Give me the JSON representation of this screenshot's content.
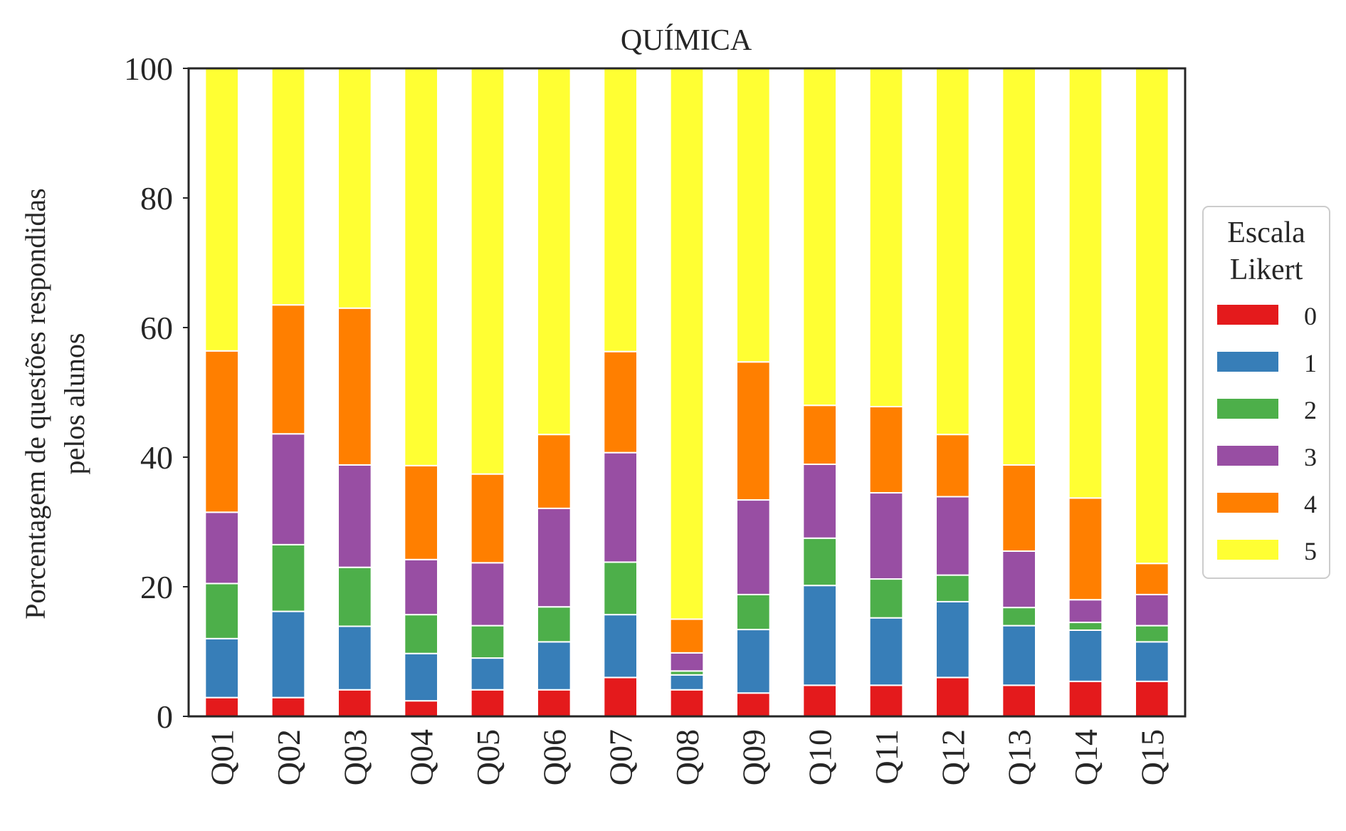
{
  "chart_data": {
    "type": "bar",
    "stacked": true,
    "title": "QUÍMICA",
    "xlabel": "",
    "ylabel_lines": [
      "Porcentagem de questões respondidas",
      "pelos alunos"
    ],
    "ylim": [
      0,
      100
    ],
    "yticks": [
      "0",
      "20",
      "40",
      "60",
      "80",
      "100"
    ],
    "grid": false,
    "legend_title_lines": [
      "Escala",
      "Likert"
    ],
    "legend_position": "center-right, outside plot",
    "categories": [
      "Q01",
      "Q02",
      "Q03",
      "Q04",
      "Q05",
      "Q06",
      "Q07",
      "Q08",
      "Q09",
      "Q10",
      "Q11",
      "Q12",
      "Q13",
      "Q14",
      "Q15"
    ],
    "series": [
      {
        "name": "0",
        "color": "#e41a1c",
        "values": [
          2.9,
          2.9,
          4.1,
          2.4,
          4.1,
          4.1,
          6.0,
          4.1,
          3.6,
          4.8,
          4.8,
          6.0,
          4.8,
          5.4,
          5.4
        ]
      },
      {
        "name": "1",
        "color": "#377eb8",
        "values": [
          9.1,
          13.3,
          9.8,
          7.3,
          4.9,
          7.4,
          9.7,
          2.3,
          9.8,
          15.4,
          10.4,
          11.7,
          9.2,
          7.9,
          6.1
        ]
      },
      {
        "name": "2",
        "color": "#4daf4a",
        "values": [
          8.5,
          10.3,
          9.1,
          6.0,
          5.0,
          5.4,
          8.1,
          0.6,
          5.4,
          7.3,
          6.0,
          4.1,
          2.8,
          1.2,
          2.5
        ]
      },
      {
        "name": "3",
        "color": "#984ea3",
        "values": [
          11.0,
          17.1,
          15.8,
          8.5,
          9.7,
          15.2,
          16.9,
          2.8,
          14.6,
          11.4,
          13.3,
          12.1,
          8.7,
          3.5,
          4.8
        ]
      },
      {
        "name": "4",
        "color": "#ff7f00",
        "values": [
          24.9,
          19.9,
          24.2,
          14.5,
          13.7,
          11.4,
          15.6,
          5.2,
          21.3,
          9.1,
          13.3,
          9.6,
          13.3,
          15.7,
          4.8
        ]
      },
      {
        "name": "5",
        "color": "#ffff33",
        "values": [
          43.6,
          36.5,
          37.0,
          61.3,
          62.6,
          56.5,
          43.7,
          85.0,
          45.3,
          52.0,
          52.2,
          56.5,
          61.2,
          66.3,
          76.4
        ]
      }
    ]
  }
}
